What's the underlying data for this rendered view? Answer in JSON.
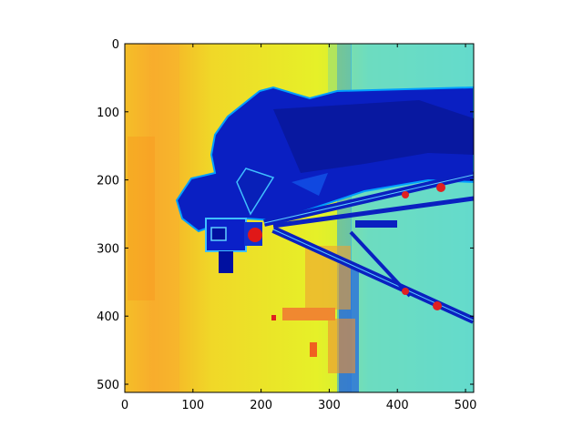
{
  "chart_data": {
    "type": "heatmap",
    "title": "",
    "xlabel": "",
    "ylabel": "",
    "colormap": "jet",
    "image_shape": [
      512,
      512
    ],
    "xlim": [
      0,
      512
    ],
    "ylim": [
      512,
      0
    ],
    "x_ticks": [
      0,
      100,
      200,
      300,
      400,
      500
    ],
    "y_ticks": [
      0,
      100,
      200,
      300,
      400,
      500
    ],
    "x_tick_labels": [
      "0",
      "100",
      "200",
      "300",
      "400",
      "500"
    ],
    "y_tick_labels": [
      "0",
      "100",
      "200",
      "300",
      "400",
      "500"
    ],
    "grid": false,
    "legend": "none",
    "colors": {
      "background_yellow": "#e8f020",
      "warm_band": "#f8a020",
      "sky_cyan": "#58e0c0",
      "figure_blue": "#0a20c0",
      "dark_blue": "#00108a",
      "highlight_red": "#e01010"
    }
  }
}
